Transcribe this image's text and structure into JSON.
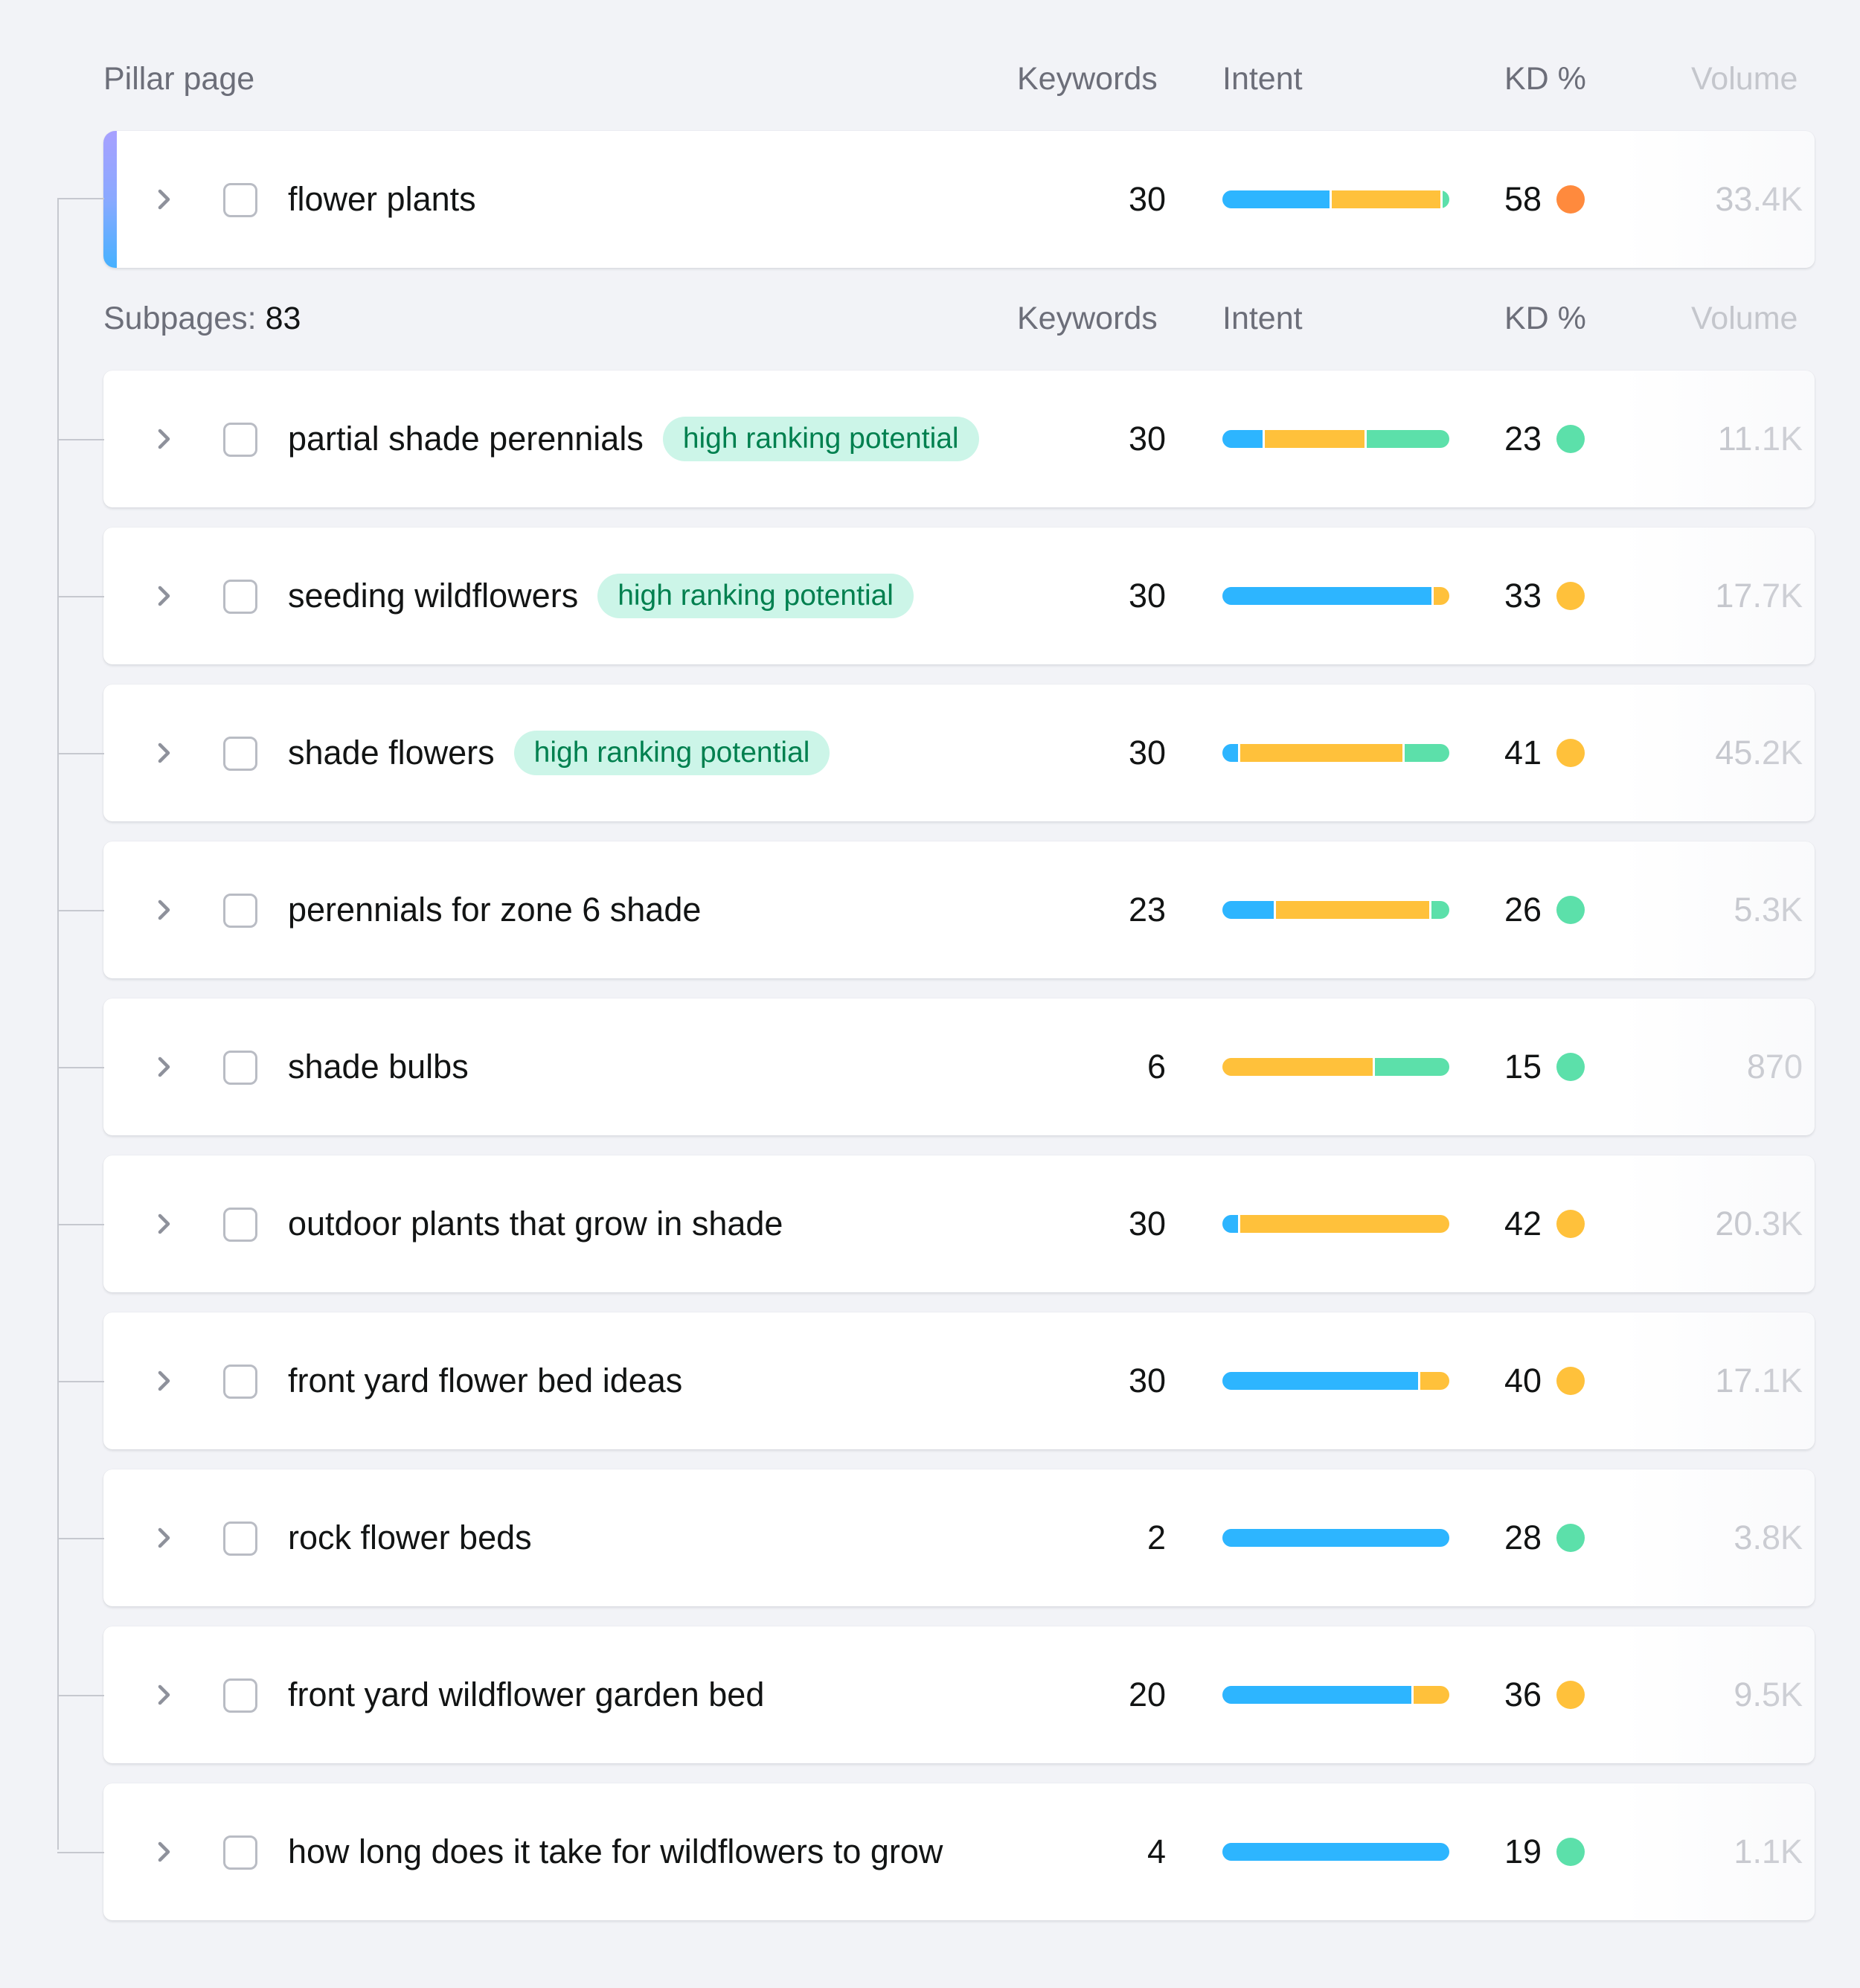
{
  "columns": {
    "pillar_title": "Pillar page",
    "subpages_label": "Subpages:",
    "subpages_count": "83",
    "keywords": "Keywords",
    "intent": "Intent",
    "kd": "KD %",
    "volume": "Volume"
  },
  "colors": {
    "intent_informational": "#2db5ff",
    "intent_commercial": "#ffc13b",
    "intent_transactional": "#5ce0aa",
    "kd_easy": "#5ce0aa",
    "kd_possible": "#ffc13b",
    "kd_difficult": "#ff8a3d",
    "badge_bg": "#ccf5e8",
    "badge_text": "#00804f",
    "pillar_accent": "#8aa9ff"
  },
  "icons": {
    "expand": "chevron-right-icon",
    "select": "checkbox-icon"
  },
  "pillar": {
    "label": "flower plants",
    "keywords": "30",
    "intent": [
      0.48,
      0.49,
      0.03
    ],
    "kd": "58",
    "kd_level": "difficult",
    "volume": "33.4K"
  },
  "subpages": [
    {
      "label": "partial shade perennials",
      "badge": "high ranking potential",
      "keywords": "30",
      "intent": [
        0.18,
        0.45,
        0.37
      ],
      "kd": "23",
      "kd_level": "easy",
      "volume": "11.1K"
    },
    {
      "label": "seeding wildflowers",
      "badge": "high ranking potential",
      "keywords": "30",
      "intent": [
        0.93,
        0.07,
        0
      ],
      "kd": "33",
      "kd_level": "possible",
      "volume": "17.7K"
    },
    {
      "label": "shade flowers",
      "badge": "high ranking potential",
      "keywords": "30",
      "intent": [
        0.07,
        0.73,
        0.2
      ],
      "kd": "41",
      "kd_level": "possible",
      "volume": "45.2K"
    },
    {
      "label": "perennials for zone 6 shade",
      "badge": "",
      "keywords": "23",
      "intent": [
        0.23,
        0.69,
        0.08
      ],
      "kd": "26",
      "kd_level": "easy",
      "volume": "5.3K"
    },
    {
      "label": "shade bulbs",
      "badge": "",
      "keywords": "6",
      "intent": [
        0,
        0.67,
        0.33
      ],
      "kd": "15",
      "kd_level": "easy",
      "volume": "870"
    },
    {
      "label": "outdoor plants that grow in shade",
      "badge": "",
      "keywords": "30",
      "intent": [
        0.07,
        0.93,
        0
      ],
      "kd": "42",
      "kd_level": "possible",
      "volume": "20.3K"
    },
    {
      "label": "front yard flower bed ideas",
      "badge": "",
      "keywords": "30",
      "intent": [
        0.87,
        0.13,
        0
      ],
      "kd": "40",
      "kd_level": "possible",
      "volume": "17.1K"
    },
    {
      "label": "rock flower beds",
      "badge": "",
      "keywords": "2",
      "intent": [
        1,
        0,
        0
      ],
      "kd": "28",
      "kd_level": "easy",
      "volume": "3.8K"
    },
    {
      "label": "front yard wildflower garden bed",
      "badge": "",
      "keywords": "20",
      "intent": [
        0.84,
        0.16,
        0
      ],
      "kd": "36",
      "kd_level": "possible",
      "volume": "9.5K"
    },
    {
      "label": "how long does it take for wildflowers to grow",
      "badge": "",
      "keywords": "4",
      "intent": [
        1,
        0,
        0
      ],
      "kd": "19",
      "kd_level": "easy",
      "volume": "1.1K"
    }
  ]
}
